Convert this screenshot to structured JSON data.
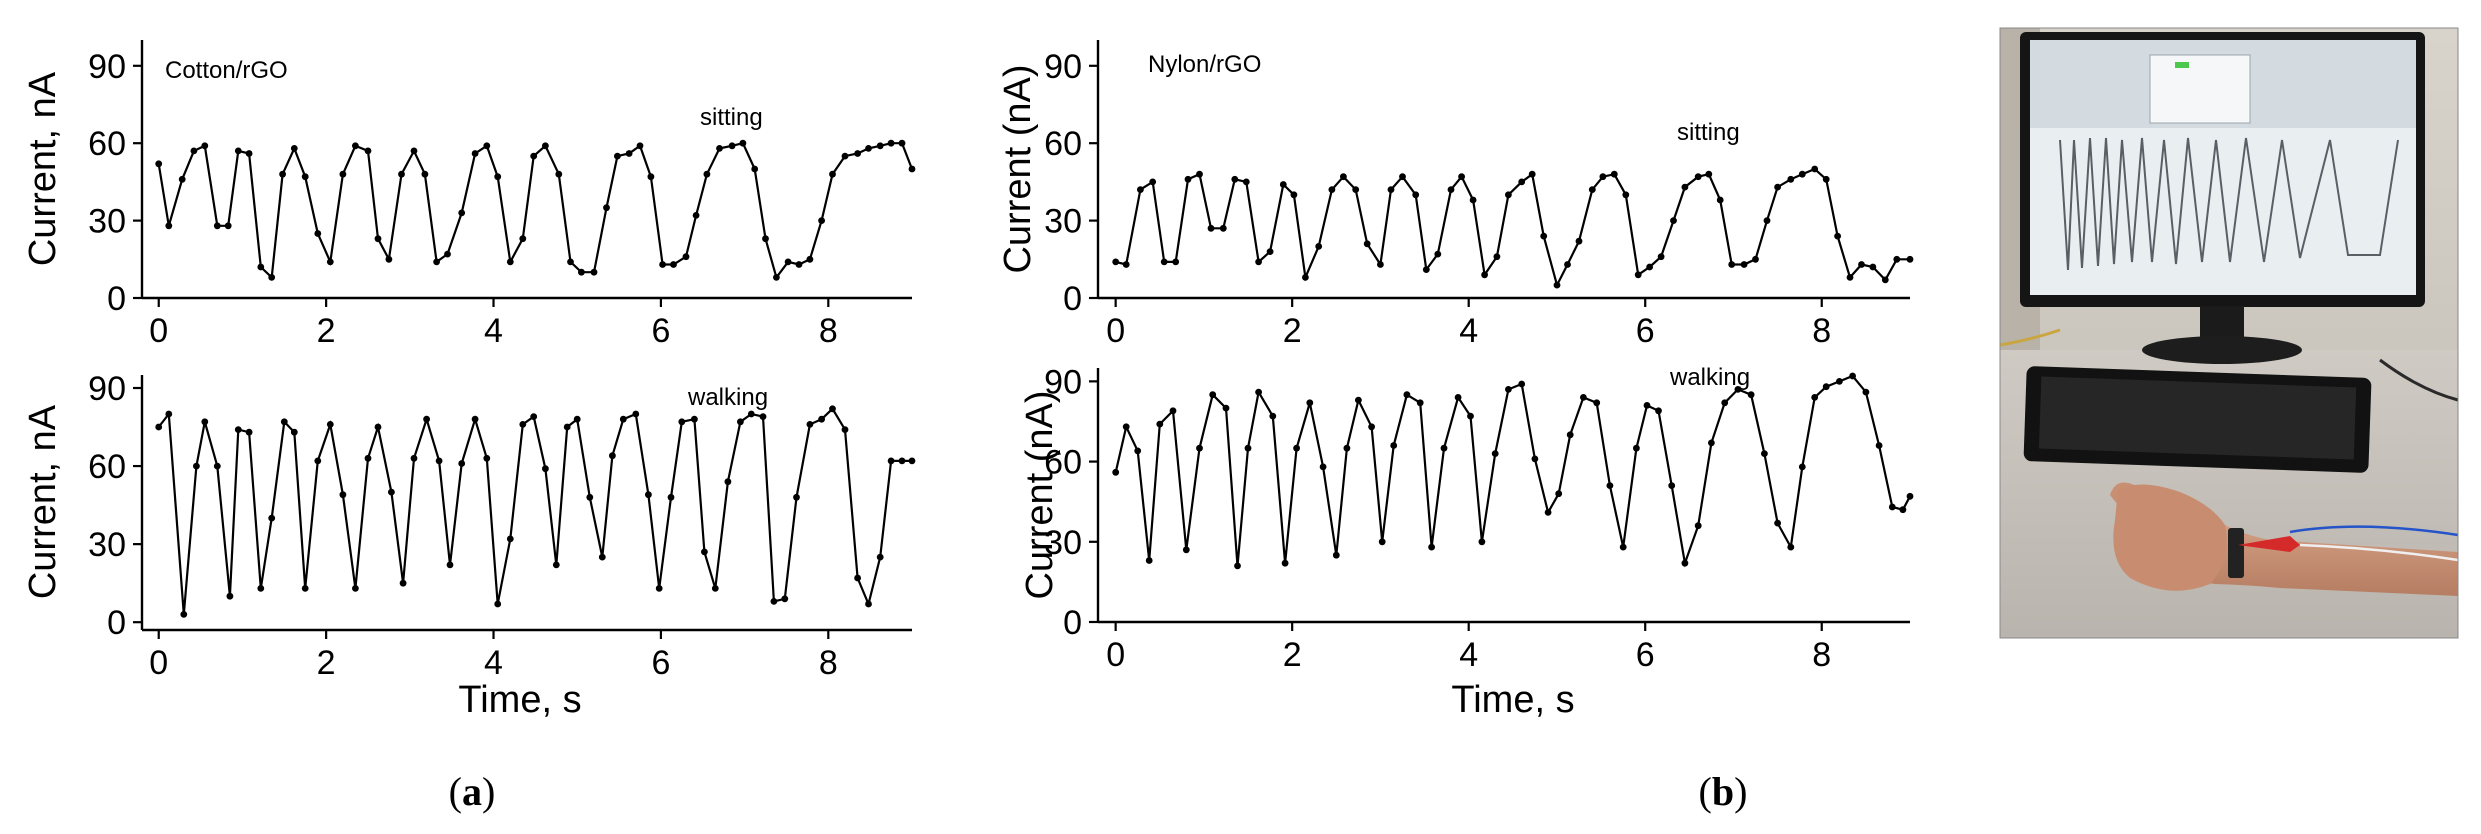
{
  "panel_labels": {
    "a": "a",
    "b": "b",
    "open": "(",
    "close": ")"
  },
  "chart_data": [
    {
      "id": "a-top",
      "type": "line",
      "annotation": "Cotton/rGO",
      "label": "sitting",
      "ylabel": "Current, nA",
      "xlabel": "",
      "xlim": [
        -0.2,
        9
      ],
      "ylim": [
        0,
        100
      ],
      "yticks": [
        0,
        30,
        60,
        90
      ],
      "xticks": [
        0,
        2,
        4,
        6,
        8
      ],
      "x": [
        0.0,
        0.12,
        0.28,
        0.42,
        0.55,
        0.7,
        0.83,
        0.95,
        1.08,
        1.22,
        1.35,
        1.48,
        1.62,
        1.75,
        1.9,
        2.05,
        2.2,
        2.35,
        2.5,
        2.62,
        2.75,
        2.9,
        3.05,
        3.18,
        3.32,
        3.45,
        3.62,
        3.78,
        3.92,
        4.05,
        4.2,
        4.35,
        4.48,
        4.62,
        4.78,
        4.92,
        5.05,
        5.2,
        5.35,
        5.48,
        5.62,
        5.75,
        5.88,
        6.02,
        6.15,
        6.3,
        6.42,
        6.55,
        6.7,
        6.85,
        6.98,
        7.12,
        7.25,
        7.38,
        7.52,
        7.65,
        7.78,
        7.92,
        8.05,
        8.2,
        8.35,
        8.48,
        8.62,
        8.75,
        8.88,
        9.0
      ],
      "values": [
        52,
        28,
        46,
        57,
        59,
        28,
        28,
        57,
        56,
        12,
        8,
        48,
        58,
        47,
        25,
        14,
        48,
        59,
        57,
        23,
        15,
        48,
        57,
        48,
        14,
        17,
        33,
        56,
        59,
        47,
        14,
        23,
        55,
        59,
        48,
        14,
        10,
        10,
        35,
        55,
        56,
        59,
        47,
        13,
        13,
        16,
        32,
        48,
        58,
        59,
        60,
        50,
        23,
        8,
        14,
        13,
        15,
        30,
        48,
        55,
        56,
        58,
        59,
        60,
        60,
        50
      ]
    },
    {
      "id": "a-bottom",
      "type": "line",
      "annotation": "",
      "label": "walking",
      "ylabel": "Current, nA",
      "xlabel": "Time, s",
      "xlim": [
        -0.2,
        9
      ],
      "ylim": [
        -3,
        95
      ],
      "yticks": [
        0,
        30,
        60,
        90
      ],
      "xticks": [
        0,
        2,
        4,
        6,
        8
      ],
      "x": [
        0.0,
        0.12,
        0.3,
        0.45,
        0.55,
        0.7,
        0.85,
        0.95,
        1.08,
        1.22,
        1.35,
        1.5,
        1.62,
        1.75,
        1.9,
        2.05,
        2.2,
        2.35,
        2.5,
        2.62,
        2.78,
        2.92,
        3.05,
        3.2,
        3.35,
        3.48,
        3.62,
        3.78,
        3.92,
        4.05,
        4.2,
        4.35,
        4.48,
        4.62,
        4.75,
        4.88,
        5.0,
        5.15,
        5.3,
        5.42,
        5.55,
        5.7,
        5.85,
        5.98,
        6.12,
        6.25,
        6.4,
        6.52,
        6.65,
        6.8,
        6.95,
        7.08,
        7.22,
        7.35,
        7.48,
        7.62,
        7.78,
        7.92,
        8.05,
        8.2,
        8.35,
        8.48,
        8.62,
        8.75,
        8.88,
        9.0
      ],
      "values": [
        75,
        80,
        3,
        60,
        77,
        60,
        10,
        74,
        73,
        13,
        40,
        77,
        73,
        13,
        62,
        76,
        49,
        13,
        63,
        75,
        50,
        15,
        63,
        78,
        62,
        22,
        61,
        78,
        63,
        7,
        32,
        76,
        79,
        59,
        22,
        75,
        78,
        48,
        25,
        64,
        78,
        80,
        49,
        13,
        48,
        77,
        78,
        27,
        13,
        54,
        77,
        80,
        79,
        8,
        9,
        48,
        76,
        78,
        82,
        74,
        17,
        7,
        25,
        62,
        62,
        62
      ]
    },
    {
      "id": "b-top",
      "type": "line",
      "annotation": "Nylon/rGO",
      "label": "sitting",
      "ylabel": "Current (nA)",
      "xlabel": "",
      "xlim": [
        -0.2,
        9
      ],
      "ylim": [
        0,
        100
      ],
      "yticks": [
        0,
        30,
        60,
        90
      ],
      "xticks": [
        0,
        2,
        4,
        6,
        8
      ],
      "x": [
        0.0,
        0.12,
        0.28,
        0.42,
        0.55,
        0.68,
        0.82,
        0.95,
        1.08,
        1.22,
        1.35,
        1.48,
        1.62,
        1.75,
        1.9,
        2.02,
        2.15,
        2.3,
        2.45,
        2.58,
        2.72,
        2.85,
        3.0,
        3.12,
        3.25,
        3.4,
        3.52,
        3.65,
        3.8,
        3.92,
        4.05,
        4.18,
        4.32,
        4.45,
        4.6,
        4.72,
        4.85,
        5.0,
        5.12,
        5.25,
        5.4,
        5.52,
        5.65,
        5.78,
        5.92,
        6.05,
        6.18,
        6.32,
        6.45,
        6.6,
        6.72,
        6.85,
        6.98,
        7.12,
        7.25,
        7.38,
        7.5,
        7.65,
        7.78,
        7.92,
        8.05,
        8.18,
        8.32,
        8.45,
        8.58,
        8.72,
        8.85,
        9.0
      ],
      "values": [
        14,
        13,
        42,
        45,
        14,
        14,
        46,
        48,
        27,
        27,
        46,
        45,
        14,
        18,
        44,
        40,
        8,
        20,
        42,
        47,
        42,
        21,
        13,
        42,
        47,
        40,
        11,
        17,
        42,
        47,
        38,
        9,
        16,
        40,
        45,
        48,
        24,
        5,
        13,
        22,
        42,
        47,
        48,
        40,
        9,
        12,
        16,
        30,
        43,
        47,
        48,
        38,
        13,
        13,
        15,
        30,
        43,
        46,
        48,
        50,
        46,
        24,
        8,
        13,
        12,
        7,
        15,
        15
      ]
    },
    {
      "id": "b-bottom",
      "type": "line",
      "annotation": "",
      "label": "walking",
      "ylabel": "Current (nA)",
      "xlabel": "Time, s",
      "xlim": [
        -0.2,
        9
      ],
      "ylim": [
        0,
        95
      ],
      "yticks": [
        0,
        30,
        60,
        90
      ],
      "xticks": [
        0,
        2,
        4,
        6,
        8
      ],
      "x": [
        0.0,
        0.12,
        0.25,
        0.38,
        0.5,
        0.65,
        0.8,
        0.95,
        1.1,
        1.25,
        1.38,
        1.5,
        1.62,
        1.78,
        1.92,
        2.05,
        2.2,
        2.35,
        2.5,
        2.62,
        2.75,
        2.9,
        3.02,
        3.15,
        3.3,
        3.45,
        3.58,
        3.72,
        3.88,
        4.02,
        4.15,
        4.3,
        4.45,
        4.6,
        4.75,
        4.9,
        5.02,
        5.15,
        5.3,
        5.45,
        5.6,
        5.75,
        5.9,
        6.02,
        6.15,
        6.3,
        6.45,
        6.6,
        6.75,
        6.9,
        7.05,
        7.2,
        7.35,
        7.5,
        7.65,
        7.78,
        7.92,
        8.05,
        8.2,
        8.35,
        8.5,
        8.65,
        8.8,
        8.92,
        9.0
      ],
      "values": [
        56,
        73,
        64,
        23,
        74,
        79,
        27,
        65,
        85,
        80,
        21,
        65,
        86,
        77,
        22,
        65,
        82,
        58,
        25,
        65,
        83,
        73,
        30,
        66,
        85,
        82,
        28,
        65,
        84,
        77,
        30,
        63,
        87,
        89,
        61,
        41,
        48,
        70,
        84,
        82,
        51,
        28,
        65,
        81,
        79,
        51,
        22,
        36,
        67,
        82,
        87,
        85,
        63,
        37,
        28,
        58,
        84,
        88,
        90,
        92,
        86,
        66,
        43,
        42,
        47
      ]
    }
  ]
}
